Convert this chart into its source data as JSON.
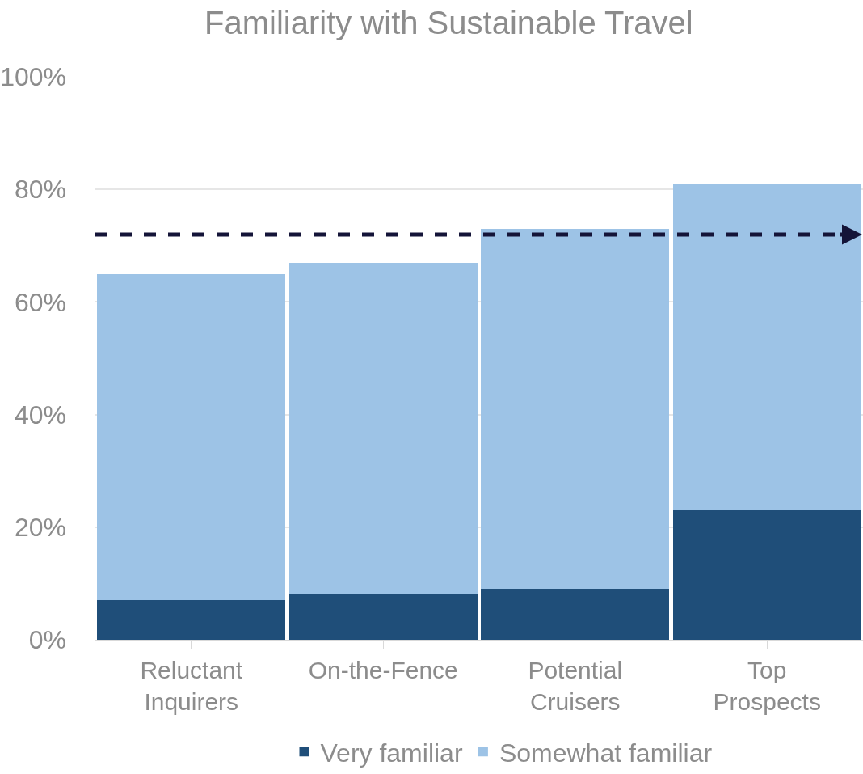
{
  "chart_data": {
    "type": "bar",
    "title": "Familiarity with Sustainable Travel",
    "categories": [
      "Reluctant Inquirers",
      "On-the-Fence",
      "Potential Cruisers",
      "Top Prospects"
    ],
    "series": [
      {
        "name": "Very familiar",
        "color": "#1f4e79",
        "values": [
          7,
          8,
          9,
          23
        ]
      },
      {
        "name": "Somewhat familiar",
        "color": "#9dc3e6",
        "values": [
          58,
          59,
          64,
          58
        ]
      }
    ],
    "stacked": true,
    "ylim": [
      0,
      100
    ],
    "yticks": [
      {
        "value": 0,
        "label": "0%"
      },
      {
        "value": 20,
        "label": "20%"
      },
      {
        "value": 40,
        "label": "40%"
      },
      {
        "value": 60,
        "label": "60%"
      },
      {
        "value": 80,
        "label": "80%"
      },
      {
        "value": 100,
        "label": "100%"
      }
    ],
    "grid": "y",
    "legend": "bottom",
    "ref_lines": [
      {
        "axis": "y",
        "value": 72,
        "color": "#141438",
        "line_style": "dashed"
      }
    ]
  }
}
